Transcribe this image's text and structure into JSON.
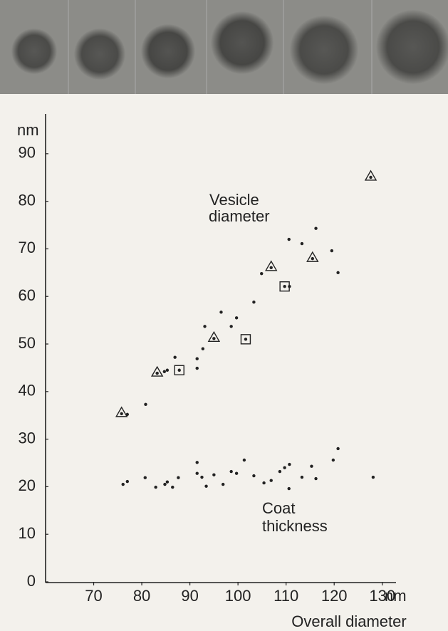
{
  "chart_data": {
    "type": "scatter",
    "x_unit": "nm",
    "y_unit": "nm",
    "x_label": "Overall diameter",
    "annotations": [
      "Vesicle",
      "diameter",
      "Coat",
      "thickness"
    ],
    "xlim": [
      60,
      135
    ],
    "ylim": [
      0,
      98
    ],
    "xticks": [
      70,
      80,
      90,
      100,
      110,
      120,
      130
    ],
    "yticks": [
      0,
      10,
      20,
      30,
      40,
      50,
      60,
      70,
      80,
      90
    ],
    "series": [
      {
        "marker": "dot",
        "color": "#222222",
        "x": [
          77.0,
          80.8,
          84.7,
          85.3,
          86.9,
          91.5,
          91.5,
          92.7,
          93.1,
          96.5,
          98.6,
          99.7,
          103.3,
          104.9,
          110.6,
          113.3,
          116.2,
          119.5,
          120.8,
          110.7
        ],
        "values": [
          35.2,
          37.3,
          44.2,
          44.5,
          47.2,
          46.9,
          44.9,
          49.0,
          53.7,
          56.7,
          53.7,
          55.5,
          58.8,
          64.8,
          72.0,
          71.1,
          74.3,
          69.6,
          65.0,
          62.1
        ]
      },
      {
        "marker": "triangle",
        "color": "#222222",
        "x": [
          75.8,
          83.2,
          95.0,
          106.9,
          115.5,
          127.6
        ],
        "values": [
          35.5,
          44.0,
          51.3,
          66.2,
          68.1,
          85.2
        ]
      },
      {
        "marker": "square",
        "color": "#222222",
        "x": [
          87.8,
          101.6,
          109.7
        ],
        "values": [
          44.5,
          51.0,
          62.1
        ]
      },
      {
        "marker": "dot",
        "color": "#222222",
        "x": [
          76.1,
          77.0,
          80.7,
          82.9,
          84.8,
          85.3,
          86.4,
          87.6,
          91.5,
          91.5,
          92.5,
          93.4,
          95.0,
          96.9,
          98.6,
          99.7,
          101.3,
          103.3,
          105.4,
          106.9,
          108.7,
          109.7,
          110.6,
          110.7,
          113.3,
          115.3,
          116.2,
          119.8,
          120.8,
          128.1
        ],
        "values": [
          20.5,
          21.1,
          21.9,
          19.9,
          20.5,
          21.0,
          19.9,
          21.9,
          25.1,
          22.8,
          22.0,
          20.1,
          22.5,
          20.5,
          23.2,
          22.8,
          25.6,
          22.3,
          20.8,
          21.3,
          23.2,
          24.0,
          19.6,
          24.7,
          22.0,
          24.3,
          21.7,
          25.6,
          28.0,
          22.0
        ]
      }
    ]
  }
}
